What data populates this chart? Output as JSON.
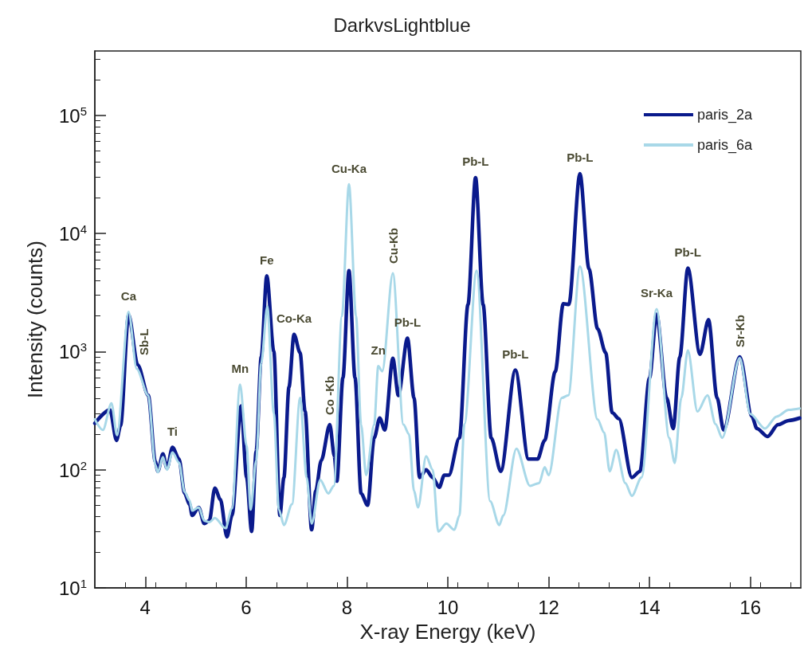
{
  "chart_data": {
    "type": "line",
    "title": "DarkvsLightblue",
    "xlabel": "X-ray Energy (keV)",
    "ylabel": "Intensity (counts)",
    "log": "y",
    "grid": false,
    "legend": "top right",
    "marker": "none",
    "line_style": "solid",
    "xlim": [
      3,
      17
    ],
    "xticks": [
      4,
      6,
      8,
      10,
      12,
      14,
      16
    ],
    "ylim": [
      10,
      350000
    ],
    "yticks": [
      {
        "value": 10,
        "label": "10$^{1}$"
      },
      {
        "value": 100,
        "label": "10$^{2}$"
      },
      {
        "value": 1000,
        "label": "10$^{3}$"
      },
      {
        "value": 10000,
        "label": "10$^{4}$"
      },
      {
        "value": 100000,
        "label": "10$^{5}$"
      }
    ],
    "series": [
      {
        "name": "paris_2a",
        "color": "#0a1a8c",
        "x": [
          3.0,
          3.3,
          3.43,
          3.51,
          3.67,
          3.85,
          4.06,
          4.2,
          4.25,
          4.35,
          4.43,
          4.54,
          4.67,
          4.78,
          4.88,
          4.93,
          5.06,
          5.17,
          5.27,
          5.38,
          5.49,
          5.62,
          5.72,
          5.9,
          6.01,
          6.11,
          6.2,
          6.3,
          6.41,
          6.55,
          6.67,
          6.75,
          6.85,
          6.95,
          7.07,
          7.17,
          7.3,
          7.38,
          7.49,
          7.66,
          7.75,
          7.8,
          7.92,
          8.04,
          8.16,
          8.28,
          8.41,
          8.54,
          8.65,
          8.75,
          8.91,
          9.02,
          9.2,
          9.33,
          9.44,
          9.57,
          9.7,
          9.83,
          9.93,
          10.02,
          10.23,
          10.4,
          10.55,
          10.7,
          10.86,
          11.05,
          11.34,
          11.6,
          11.78,
          11.92,
          12.13,
          12.29,
          12.4,
          12.62,
          12.8,
          12.97,
          13.13,
          13.26,
          13.39,
          13.65,
          13.81,
          14.0,
          14.14,
          14.34,
          14.47,
          14.6,
          14.76,
          15.0,
          15.17,
          15.34,
          15.47,
          15.79,
          16.03,
          16.13,
          16.34,
          16.55,
          16.76,
          16.98
        ],
        "values": [
          247,
          321,
          177,
          235,
          2050,
          773,
          426,
          117,
          97,
          136,
          103,
          155,
          123,
          63,
          51,
          41,
          48,
          35,
          37,
          70,
          56,
          27,
          41,
          347,
          86,
          30,
          144,
          900,
          4380,
          1000,
          41,
          86,
          500,
          1400,
          980,
          312,
          31,
          66,
          120,
          241,
          130,
          80,
          600,
          4850,
          600,
          63,
          50,
          186,
          274,
          217,
          879,
          425,
          1300,
          405,
          86,
          100,
          86,
          71,
          90,
          90,
          186,
          2500,
          29700,
          2500,
          186,
          97,
          697,
          123,
          123,
          177,
          677,
          2540,
          2500,
          32100,
          5000,
          1560,
          980,
          304,
          271,
          86,
          97,
          600,
          2070,
          405,
          223,
          900,
          5100,
          950,
          1860,
          405,
          217,
          902,
          282,
          223,
          191,
          241,
          261,
          274
        ]
      },
      {
        "name": "paris_6a",
        "color": "#a8d8e8",
        "x": [
          3.0,
          3.16,
          3.33,
          3.44,
          3.67,
          3.83,
          4.06,
          4.2,
          4.25,
          4.35,
          4.43,
          4.54,
          4.67,
          4.78,
          4.88,
          4.93,
          5.06,
          5.17,
          5.27,
          5.38,
          5.59,
          5.72,
          5.88,
          6.01,
          6.09,
          6.2,
          6.3,
          6.42,
          6.55,
          6.65,
          6.75,
          6.91,
          7.07,
          7.2,
          7.3,
          7.47,
          7.63,
          7.74,
          7.9,
          8.04,
          8.18,
          8.28,
          8.38,
          8.54,
          8.62,
          8.7,
          8.91,
          9.12,
          9.23,
          9.33,
          9.41,
          9.57,
          9.7,
          9.81,
          9.97,
          10.13,
          10.23,
          10.33,
          10.57,
          10.84,
          11.02,
          11.1,
          11.36,
          11.63,
          11.81,
          11.92,
          12.0,
          12.26,
          12.39,
          12.62,
          12.97,
          13.1,
          13.21,
          13.34,
          13.52,
          13.65,
          13.84,
          14.14,
          14.39,
          14.5,
          14.63,
          14.76,
          14.95,
          15.15,
          15.31,
          15.44,
          15.79,
          16.0,
          16.29,
          16.52,
          16.76,
          16.98
        ],
        "values": [
          267,
          217,
          365,
          196,
          2170,
          714,
          426,
          110,
          95,
          128,
          100,
          140,
          115,
          65,
          55,
          45,
          48,
          37,
          36,
          39,
          32,
          47,
          525,
          159,
          46,
          120,
          800,
          2410,
          300,
          46,
          34,
          51,
          405,
          86,
          35,
          82,
          63,
          73,
          2000,
          26100,
          2000,
          241,
          90,
          241,
          753,
          680,
          4600,
          241,
          200,
          66,
          48,
          130,
          100,
          30,
          35,
          31,
          41,
          243,
          4850,
          54,
          34,
          41,
          151,
          73,
          77,
          105,
          90,
          405,
          427,
          5250,
          267,
          206,
          97,
          147,
          77,
          60,
          86,
          2290,
          186,
          114,
          405,
          1025,
          311,
          426,
          243,
          186,
          880,
          296,
          223,
          282,
          321,
          330
        ]
      }
    ],
    "annotations": [
      {
        "text": "Ca",
        "x": 3.67,
        "y": 2170
      },
      {
        "text": "Sb-L",
        "x": 3.85,
        "y": 773
      },
      {
        "text": "Ti",
        "x": 4.54,
        "y": 155
      },
      {
        "text": "Mn",
        "x": 5.88,
        "y": 525
      },
      {
        "text": "Fe",
        "x": 6.41,
        "y": 4380
      },
      {
        "text": "Co-Ka",
        "x": 6.95,
        "y": 1400
      },
      {
        "text": "Co -Kb",
        "x": 7.66,
        "y": 241
      },
      {
        "text": "Cu-Ka",
        "x": 8.04,
        "y": 26100
      },
      {
        "text": "Zn",
        "x": 8.62,
        "y": 753
      },
      {
        "text": "Cu-Kb",
        "x": 8.91,
        "y": 4600
      },
      {
        "text": "Pb-L",
        "x": 9.2,
        "y": 1300
      },
      {
        "text": "Pb-L",
        "x": 10.55,
        "y": 29700
      },
      {
        "text": "Pb-L",
        "x": 11.34,
        "y": 697
      },
      {
        "text": "Pb-L",
        "x": 12.62,
        "y": 32100
      },
      {
        "text": "Sr-Ka",
        "x": 14.14,
        "y": 2290
      },
      {
        "text": "Pb-L",
        "x": 14.76,
        "y": 5100
      },
      {
        "text": "Sr-Kb",
        "x": 15.79,
        "y": 902
      }
    ]
  }
}
